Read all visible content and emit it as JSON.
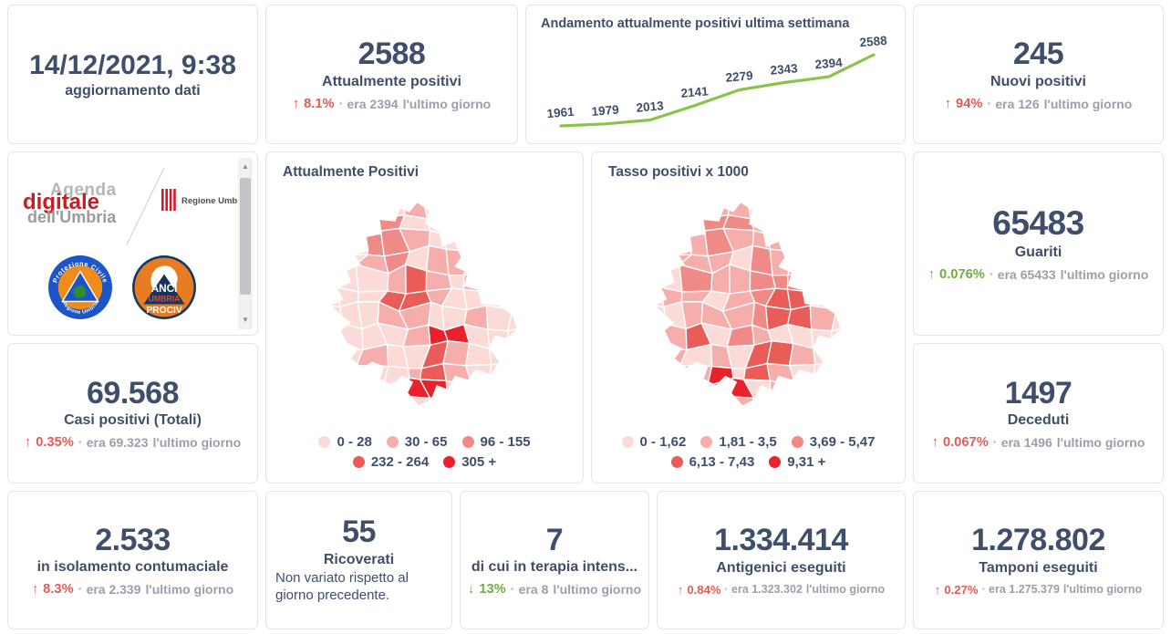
{
  "palette": {
    "navy": "#3f4e6a",
    "gray": "#9aa0ab",
    "red": "#e15c58",
    "green": "#6fae3f",
    "line_green": "#8bc34a",
    "map_levels": [
      "#fadbd8",
      "#f5aeab",
      "#ef8a86",
      "#ea5c58",
      "#e8212a"
    ]
  },
  "misc": {
    "sep": "•",
    "last": "l'ultimo giorno"
  },
  "cards": {
    "date": {
      "value": "14/12/2021, 9:38",
      "label": "aggiornamento dati"
    },
    "attualmente": {
      "value": "2588",
      "label": "Attualmente positivi",
      "arrow": "↑",
      "pct": "8.1%",
      "era": "era 2394"
    },
    "nuovi": {
      "value": "245",
      "label": "Nuovi positivi",
      "arrow": "↑",
      "pct": "94%",
      "era": "era 126"
    },
    "guariti": {
      "value": "65483",
      "label": "Guariti",
      "arrow": "↑",
      "pct": "0.076%",
      "era": "era 65433"
    },
    "casi": {
      "value": "69.568",
      "label": "Casi positivi (Totali)",
      "arrow": "↑",
      "pct": "0.35%",
      "era": "era 69.323"
    },
    "deceduti": {
      "value": "1497",
      "label": "Deceduti",
      "arrow": "↑",
      "pct": "0.067%",
      "era": "era 1496"
    },
    "isolamento": {
      "value": "2.533",
      "label": "in isolamento contumaciale",
      "arrow": "↑",
      "pct": "8.3%",
      "era": "era 2.339"
    },
    "ricoverati": {
      "value": "55",
      "label": "Ricoverati",
      "note": "Non variato rispetto al giorno precedente."
    },
    "terapia": {
      "value": "7",
      "label": "di cui in terapia intens...",
      "arrow": "↓",
      "pct": "13%",
      "era": "era 8"
    },
    "antigenici": {
      "value": "1.334.414",
      "label": "Antigenici eseguiti",
      "arrow": "↑",
      "pct": "0.84%",
      "era": "era 1.323.302"
    },
    "tamponi": {
      "value": "1.278.802",
      "label": "Tamponi eseguiti",
      "arrow": "↑",
      "pct": "0.27%",
      "era": "era 1.275.379"
    }
  },
  "chart_data": [
    {
      "type": "line",
      "title": "Andamento attualmente positivi ultima settimana",
      "values": [
        1961,
        1979,
        2013,
        2141,
        2279,
        2343,
        2394,
        2588
      ],
      "labels": [
        "1961",
        "1979",
        "2013",
        "2141",
        "2279",
        "2343",
        "2394",
        "2588"
      ],
      "line_color": "#8bc34a",
      "label_color": "#3f4e6a",
      "grid": false,
      "legend": "none"
    },
    {
      "type": "choropleth",
      "title": "Attualmente Positivi",
      "legend": [
        "0 - 28",
        "30 - 65",
        "96 - 155",
        "232 - 264",
        "305 +"
      ],
      "levels": [
        "0000100000",
        "0002000000",
        "0022100000",
        "0012011000",
        "0001310100",
        "0003310000",
        "0001100100",
        "0000144000",
        "0010031000",
        "0000131000",
        "0000440000",
        "0000010000"
      ]
    },
    {
      "type": "choropleth",
      "title": "Tasso positivi x 1000",
      "legend": [
        "0 - 1,62",
        "1,81 - 3,5",
        "3,69 - 5,47",
        "6,13 - 7,43",
        "9,31 +"
      ],
      "levels": [
        "0001100000",
        "0012210000",
        "0112111000",
        "0111021110",
        "1021122210",
        "0110123300",
        "0011123310",
        "0130210000",
        "0101033100",
        "0014031000",
        "0004401000",
        "0000110000"
      ]
    }
  ],
  "logos": {
    "agenda_line1": "Agenda",
    "agenda_line2": "digitale",
    "agenda_line3": "dell'Umbria",
    "regione": "Regione Umbria",
    "pc_top": "Protezione Civile",
    "pc_bottom": "Regione Umbria",
    "anci1": "ANCI",
    "anci2": "UMBRIA",
    "anci3": "PROCIV"
  }
}
